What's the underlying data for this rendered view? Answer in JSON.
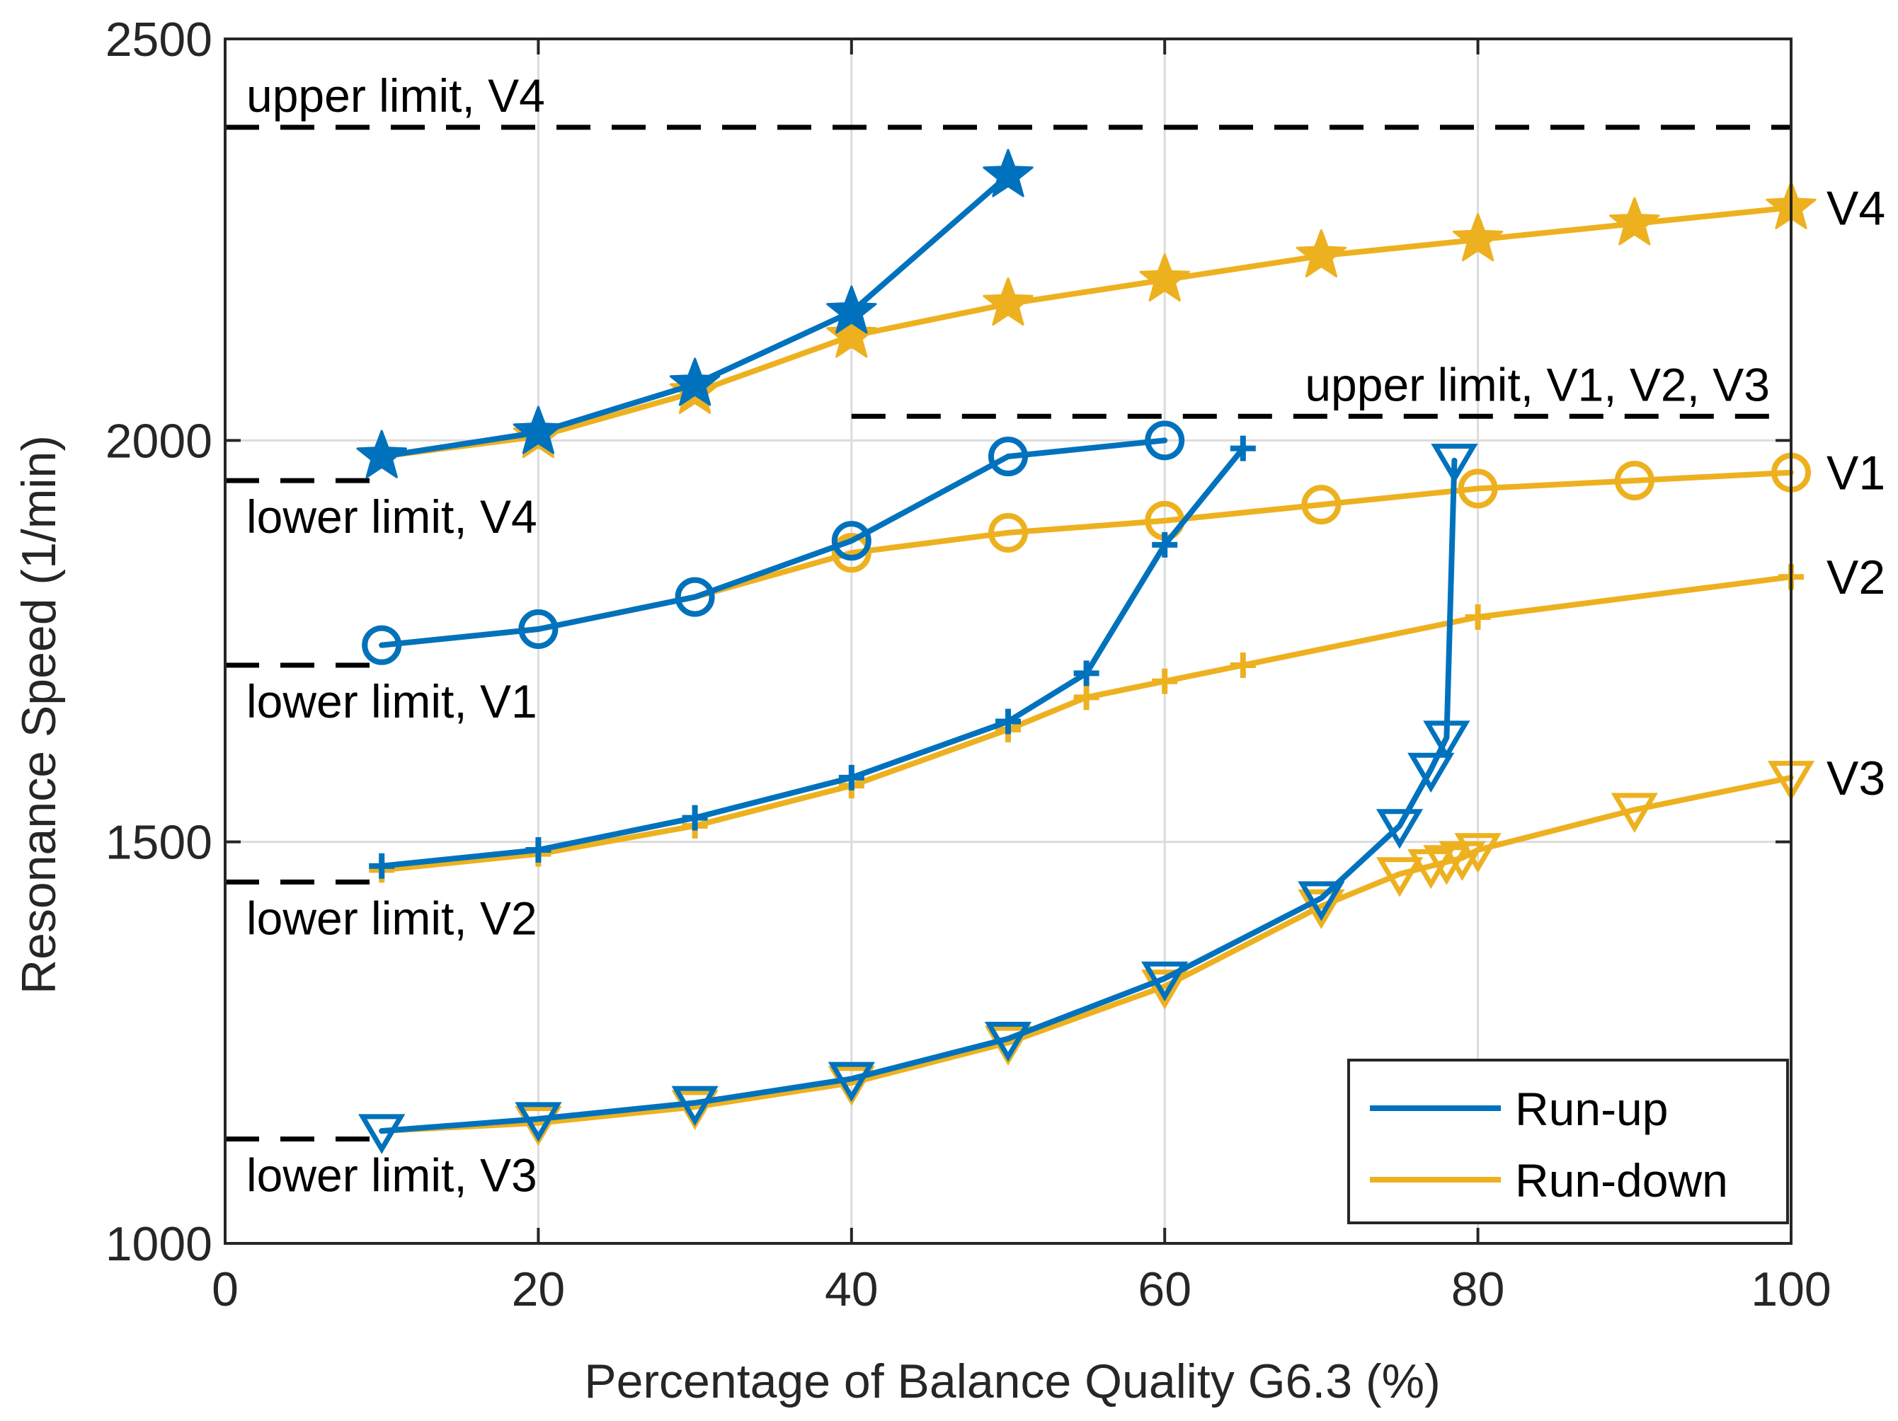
{
  "chart_data": {
    "type": "line",
    "title": "",
    "xlabel": "Percentage of Balance Quality G6.3 (%)",
    "ylabel": "Resonance Speed (1/min)",
    "xlim": [
      0,
      100
    ],
    "ylim": [
      1000,
      2500
    ],
    "xticks": [
      0,
      20,
      40,
      60,
      80,
      100
    ],
    "yticks": [
      1000,
      1500,
      2000,
      2500
    ],
    "grid": true,
    "legend_position": "bottom-right",
    "legend": [
      {
        "label": "Run-up",
        "color": "#0072BD"
      },
      {
        "label": "Run-down",
        "color": "#EDB120"
      }
    ],
    "colors": {
      "run_up": "#0072BD",
      "run_down": "#EDB120",
      "limit": "#000000",
      "grid": "#dcdcdc"
    },
    "series": [
      {
        "name": "V4 Run-down",
        "variant": "V4",
        "direction": "run-down",
        "marker": "star",
        "x": [
          10,
          20,
          30,
          40,
          50,
          60,
          70,
          80,
          90,
          100
        ],
        "y": [
          1980,
          2005,
          2060,
          2130,
          2170,
          2200,
          2230,
          2250,
          2270,
          2290
        ]
      },
      {
        "name": "V4 Run-up",
        "variant": "V4",
        "direction": "run-up",
        "marker": "star",
        "x": [
          10,
          20,
          30,
          40,
          50
        ],
        "y": [
          1980,
          2010,
          2070,
          2160,
          2330
        ]
      },
      {
        "name": "V1 Run-down",
        "variant": "V1",
        "direction": "run-down",
        "marker": "circle",
        "x": [
          10,
          20,
          30,
          40,
          50,
          60,
          70,
          80,
          90,
          100
        ],
        "y": [
          1745,
          1765,
          1805,
          1860,
          1885,
          1900,
          1920,
          1940,
          1950,
          1960
        ]
      },
      {
        "name": "V1 Run-up",
        "variant": "V1",
        "direction": "run-up",
        "marker": "circle",
        "x": [
          10,
          20,
          30,
          40,
          50,
          60
        ],
        "y": [
          1745,
          1765,
          1805,
          1875,
          1980,
          2000
        ]
      },
      {
        "name": "V2 Run-down",
        "variant": "V2",
        "direction": "run-down",
        "marker": "plus",
        "x": [
          10,
          20,
          30,
          40,
          50,
          55,
          60,
          65,
          80,
          100
        ],
        "y": [
          1465,
          1485,
          1520,
          1570,
          1640,
          1680,
          1700,
          1720,
          1780,
          1830
        ]
      },
      {
        "name": "V2 Run-up",
        "variant": "V2",
        "direction": "run-up",
        "marker": "plus",
        "x": [
          10,
          20,
          30,
          40,
          50,
          55,
          60,
          65
        ],
        "y": [
          1470,
          1490,
          1530,
          1580,
          1650,
          1710,
          1870,
          1990
        ]
      },
      {
        "name": "V3 Run-down",
        "variant": "V3",
        "direction": "run-down",
        "marker": "triangle-down",
        "x": [
          10,
          20,
          30,
          40,
          50,
          60,
          70,
          75,
          77,
          78,
          79,
          80,
          90,
          100
        ],
        "y": [
          1140,
          1150,
          1170,
          1200,
          1250,
          1320,
          1420,
          1460,
          1470,
          1475,
          1480,
          1490,
          1540,
          1580
        ]
      },
      {
        "name": "V3 Run-up",
        "variant": "V3",
        "direction": "run-up",
        "marker": "triangle-down",
        "x": [
          10,
          20,
          30,
          40,
          50,
          60,
          70,
          75,
          77,
          78,
          78.5
        ],
        "y": [
          1140,
          1155,
          1175,
          1205,
          1255,
          1330,
          1430,
          1520,
          1590,
          1630,
          1975
        ]
      }
    ],
    "limit_lines": [
      {
        "label": "upper limit, V4",
        "y": 2390,
        "x_range": [
          0,
          100
        ],
        "label_anchor": "above-left"
      },
      {
        "label": "upper limit, V1, V2, V3",
        "y": 2030,
        "x_range": [
          40,
          100
        ],
        "label_anchor": "above-right"
      },
      {
        "label": "lower limit, V4",
        "y": 1950,
        "x_range": [
          0,
          10
        ],
        "label_anchor": "below-left"
      },
      {
        "label": "lower limit, V1",
        "y": 1720,
        "x_range": [
          0,
          10
        ],
        "label_anchor": "below-left"
      },
      {
        "label": "lower limit, V2",
        "y": 1450,
        "x_range": [
          0,
          10
        ],
        "label_anchor": "below-left"
      },
      {
        "label": "lower limit, V3",
        "y": 1130,
        "x_range": [
          0,
          10
        ],
        "label_anchor": "below-left"
      }
    ],
    "end_labels": [
      {
        "text": "V4",
        "y": 2290
      },
      {
        "text": "V1",
        "y": 1960
      },
      {
        "text": "V2",
        "y": 1830
      },
      {
        "text": "V3",
        "y": 1580
      }
    ]
  }
}
